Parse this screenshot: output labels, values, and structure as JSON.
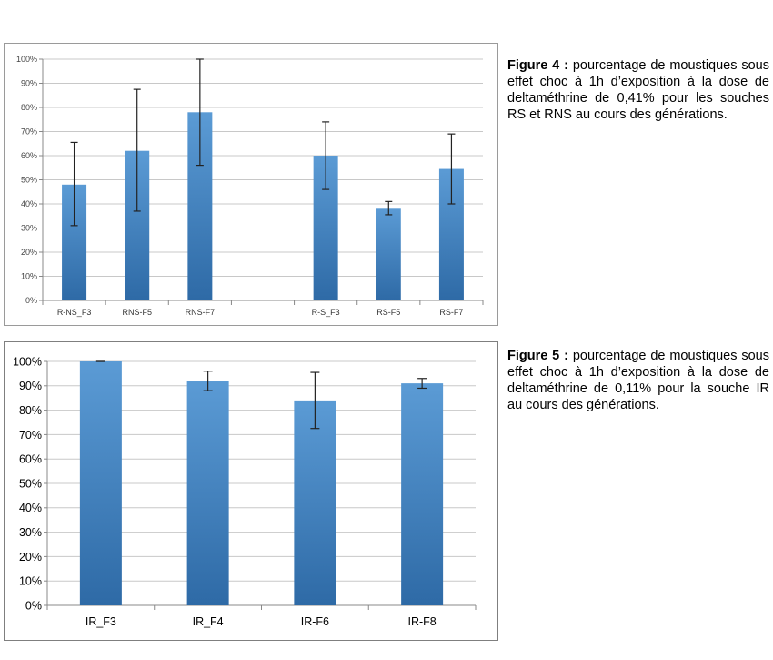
{
  "colors": {
    "bar_top": "#5b9bd5",
    "bar_bottom": "#2e6aa6",
    "grid": "#c8c8c8",
    "error_bar": "#222222"
  },
  "figure4": {
    "caption_lead": "Figure 4 :",
    "caption_text": "pourcentage de moustiques sous effet choc à 1h d’exposition à la dose de deltaméthrine de 0,41% pour les souches RS et RNS au cours des générations."
  },
  "figure5": {
    "caption_lead": "Figure 5 :",
    "caption_text": "pourcentage de moustiques sous effet choc à 1h d’exposition à la dose de deltaméthrine de 0,11% pour la souche IR au cours des générations."
  },
  "chart_data": [
    {
      "type": "bar",
      "categories": [
        "R-NS_F3",
        "RNS-F5",
        "RNS-F7",
        "",
        "R-S_F3",
        "RS-F5",
        "RS-F7"
      ],
      "values": [
        48,
        62,
        78,
        null,
        60,
        38,
        54.5
      ],
      "error_low": [
        31,
        37,
        56,
        null,
        46,
        35.5,
        40
      ],
      "error_high": [
        65.5,
        87.5,
        100,
        null,
        74,
        41,
        69
      ],
      "yticks": [
        "0%",
        "10%",
        "20%",
        "30%",
        "40%",
        "50%",
        "60%",
        "70%",
        "80%",
        "90%",
        "100%"
      ],
      "ylim": [
        0,
        100
      ],
      "grid": true,
      "title": "",
      "xlabel": "",
      "ylabel": ""
    },
    {
      "type": "bar",
      "categories": [
        "IR_F3",
        "IR_F4",
        "IR-F6",
        "IR-F8"
      ],
      "values": [
        100,
        92,
        84,
        91
      ],
      "error_low": [
        100,
        88,
        72.5,
        89
      ],
      "error_high": [
        100,
        96,
        95.5,
        93
      ],
      "yticks": [
        "0%",
        "10%",
        "20%",
        "30%",
        "40%",
        "50%",
        "60%",
        "70%",
        "80%",
        "90%",
        "100%"
      ],
      "ylim": [
        0,
        100
      ],
      "grid": true,
      "title": "",
      "xlabel": "",
      "ylabel": ""
    }
  ]
}
